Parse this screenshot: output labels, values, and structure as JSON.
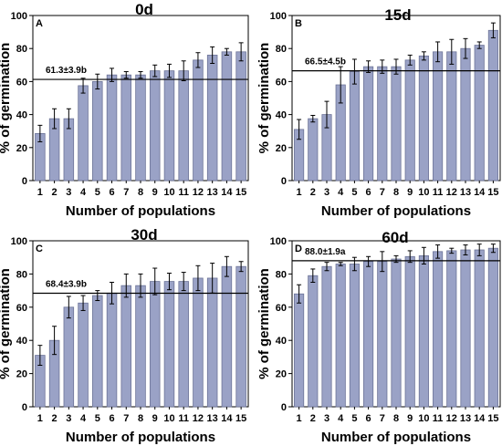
{
  "chart_data": [
    {
      "type": "bar",
      "panel": "A",
      "title": "0d",
      "xlabel": "Number of populations",
      "ylabel": "% of germination",
      "ylim": [
        0,
        100
      ],
      "yticks": [
        "0",
        "20",
        "40",
        "60",
        "80",
        "100"
      ],
      "categories": [
        "1",
        "2",
        "3",
        "4",
        "5",
        "6",
        "7",
        "8",
        "9",
        "10",
        "11",
        "12",
        "13",
        "14",
        "15"
      ],
      "values": [
        28.5,
        37.5,
        37.5,
        57.5,
        60,
        64,
        64,
        64,
        66.5,
        66.5,
        66.5,
        73,
        76,
        78,
        78
      ],
      "errors": [
        5,
        6,
        6,
        4.5,
        4.5,
        4,
        2,
        2,
        3.5,
        4,
        6,
        4.5,
        5,
        2,
        5.5
      ],
      "mean_line": 61.3,
      "mean_label": "61.3±3.9b"
    },
    {
      "type": "bar",
      "panel": "B",
      "title": "15d",
      "xlabel": "Number of populations",
      "ylabel": "% of germination",
      "ylim": [
        0,
        100
      ],
      "yticks": [
        "0",
        "20",
        "40",
        "60",
        "80",
        "100"
      ],
      "categories": [
        "1",
        "2",
        "3",
        "4",
        "5",
        "6",
        "7",
        "8",
        "9",
        "10",
        "11",
        "12",
        "13",
        "14",
        "15"
      ],
      "values": [
        31,
        37.5,
        40,
        58,
        66,
        69,
        69,
        69,
        73,
        75.5,
        78,
        78,
        80,
        82,
        91
      ],
      "errors": [
        6,
        2,
        8,
        11,
        7.5,
        3.5,
        4,
        4.5,
        3,
        2.5,
        6,
        7.5,
        6,
        2,
        4.5
      ],
      "mean_line": 66.5,
      "mean_label": "66.5±4.5b"
    },
    {
      "type": "bar",
      "panel": "C",
      "title": "30d",
      "xlabel": "Number of populations",
      "ylabel": "% of germination",
      "ylim": [
        0,
        100
      ],
      "yticks": [
        "0",
        "20",
        "40",
        "60",
        "80",
        "100"
      ],
      "categories": [
        "1",
        "2",
        "3",
        "4",
        "5",
        "6",
        "7",
        "8",
        "9",
        "10",
        "11",
        "12",
        "13",
        "14",
        "15"
      ],
      "values": [
        31,
        40,
        60,
        62.5,
        67,
        68.5,
        73,
        73,
        75.5,
        75.5,
        75.5,
        77.5,
        77.5,
        84.5,
        84.5
      ],
      "errors": [
        6,
        8.5,
        6.5,
        4.5,
        3,
        6.5,
        7,
        7,
        8,
        5,
        5.5,
        7.5,
        9,
        6,
        3
      ],
      "mean_line": 68.4,
      "mean_label": "68.4±3.9b"
    },
    {
      "type": "bar",
      "panel": "D",
      "title": "60d",
      "xlabel": "Number of populations",
      "ylabel": "% of germination",
      "ylim": [
        0,
        100
      ],
      "yticks": [
        "0",
        "20",
        "40",
        "60",
        "80",
        "100"
      ],
      "categories": [
        "1",
        "2",
        "3",
        "4",
        "5",
        "6",
        "7",
        "8",
        "9",
        "10",
        "11",
        "12",
        "13",
        "14",
        "15"
      ],
      "values": [
        68,
        79,
        84.5,
        86,
        86,
        87.5,
        87.5,
        89,
        90.5,
        91,
        93.5,
        94,
        94.5,
        94.5,
        95.5
      ],
      "errors": [
        5.5,
        4,
        2.5,
        1,
        4,
        3,
        6,
        2,
        3.5,
        5,
        4,
        1.5,
        3,
        3.5,
        2.5
      ],
      "mean_line": 88.0,
      "mean_label": "88.0±1.9a"
    }
  ]
}
